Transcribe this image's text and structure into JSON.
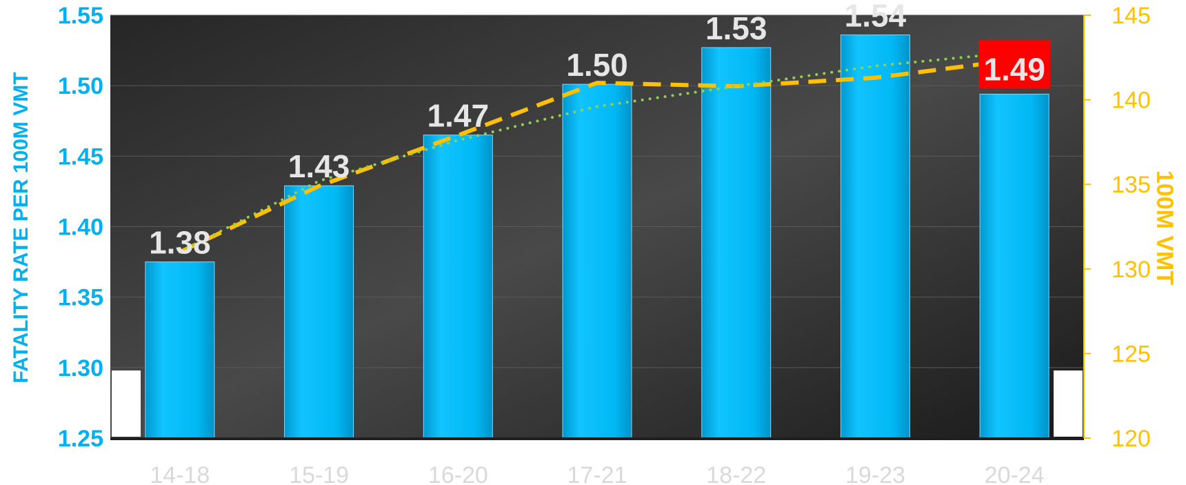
{
  "chart_data": {
    "type": "bar",
    "categories": [
      "14-18",
      "15-19",
      "16-20",
      "17-21",
      "18-22",
      "19-23",
      "20-24"
    ],
    "y_left_label": "FATALITY RATE PER 100M VMT",
    "y_right_label": "100M VMT",
    "y_left_ticks": [
      "1.25",
      "1.30",
      "1.35",
      "1.40",
      "1.45",
      "1.50",
      "1.55"
    ],
    "y_right_ticks": [
      "120",
      "125",
      "130",
      "135",
      "140",
      "145"
    ],
    "ylim_left": [
      1.25,
      1.55
    ],
    "ylim_right": [
      120,
      145
    ],
    "series": [
      {
        "values": [
          1.375,
          1.429,
          1.465,
          1.501,
          1.527,
          1.536,
          1.494
        ],
        "axis": "left",
        "style": "bar",
        "color": "#00B4F0"
      },
      {
        "values": [
          131.0,
          134.9,
          137.9,
          141.0,
          140.8,
          141.3,
          142.2
        ],
        "axis": "right",
        "style": "dashed-line",
        "color": "#FFC000"
      },
      {
        "values": [
          131.0,
          135.2,
          137.6,
          139.6,
          140.8,
          142.0,
          142.8
        ],
        "axis": "right",
        "style": "dotted-line",
        "color": "#92D050"
      }
    ],
    "data_labels": [
      "1.38",
      "1.43",
      "1.47",
      "1.50",
      "1.53",
      "1.54",
      "1.49"
    ],
    "highlight_index": 6,
    "highlight_color": "#FF0000",
    "bar_color": "#00B4F0",
    "left_axis_color": "#00B0F0",
    "right_axis_color": "#FFC000",
    "category_color": "#D9D9D9",
    "label_color": "#E7E6E6",
    "grid": true
  }
}
